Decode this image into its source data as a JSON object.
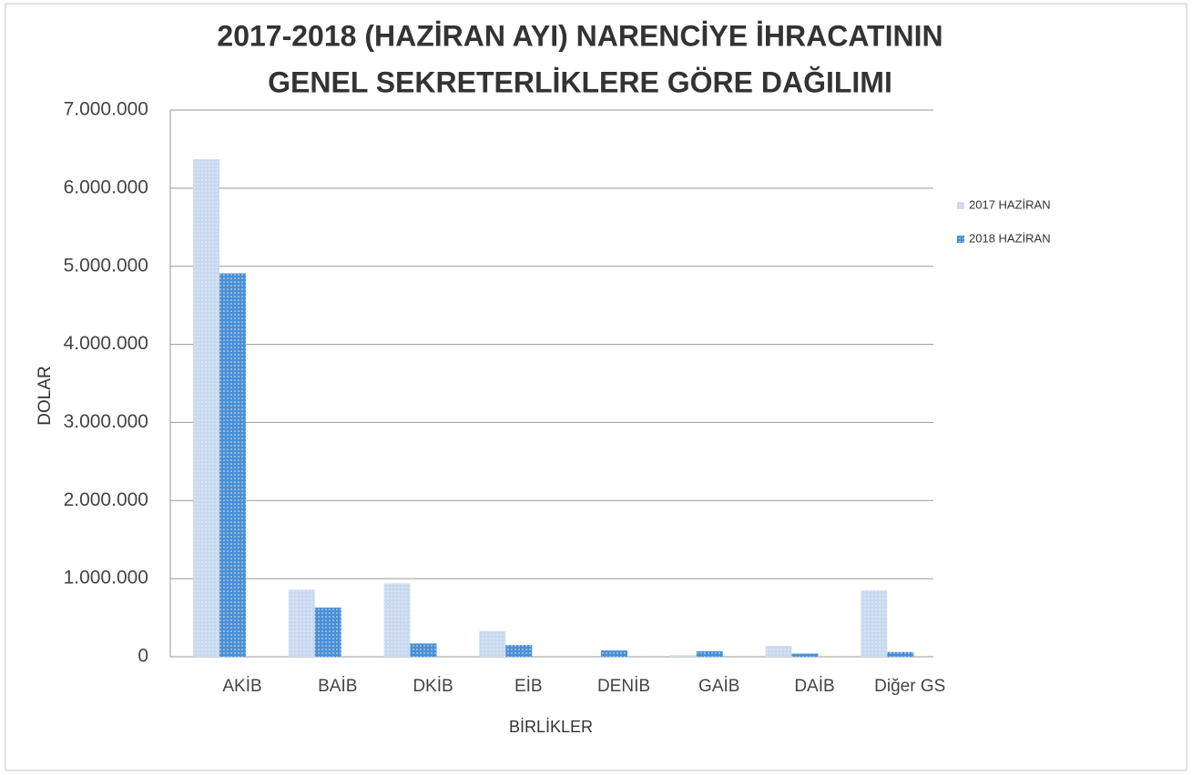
{
  "chart_data": {
    "type": "bar",
    "title": "2017-2018 (HAZİRAN AYI) NARENCİYE İHRACATININ",
    "subtitle": "GENEL SEKRETERLİKLERE GÖRE DAĞILIMI",
    "y_label": "DOLAR",
    "x_label": "BİRLİKLER",
    "categories": [
      "AKİB",
      "BAİB",
      "DKİB",
      "EİB",
      "DENİB",
      "GAİB",
      "DAİB",
      "Diğer GS"
    ],
    "series": [
      {
        "name": "2017 HAZİRAN",
        "color": "#c9daf0",
        "values": [
          6370000,
          860000,
          940000,
          330000,
          0,
          20000,
          140000,
          850000
        ]
      },
      {
        "name": "2018 HAZİRAN",
        "color": "#4a8fd6",
        "values": [
          4910000,
          630000,
          170000,
          150000,
          80000,
          70000,
          40000,
          60000
        ]
      }
    ],
    "ylim": [
      0,
      7000000
    ],
    "yticks": [
      0,
      {
        "value": 1000000,
        "label": "1.000.000"
      },
      {
        "value": 2000000,
        "label": "2.000.000"
      },
      {
        "value": 3000000,
        "label": "3.000.000"
      },
      {
        "value": 4000000,
        "label": "4.000.000"
      },
      {
        "value": 5000000,
        "label": "5.000.000"
      },
      {
        "value": 6000000,
        "label": "6.000.000"
      },
      {
        "value": 7000000,
        "label": "7.000.000"
      }
    ],
    "grid": true,
    "legend": "right"
  }
}
